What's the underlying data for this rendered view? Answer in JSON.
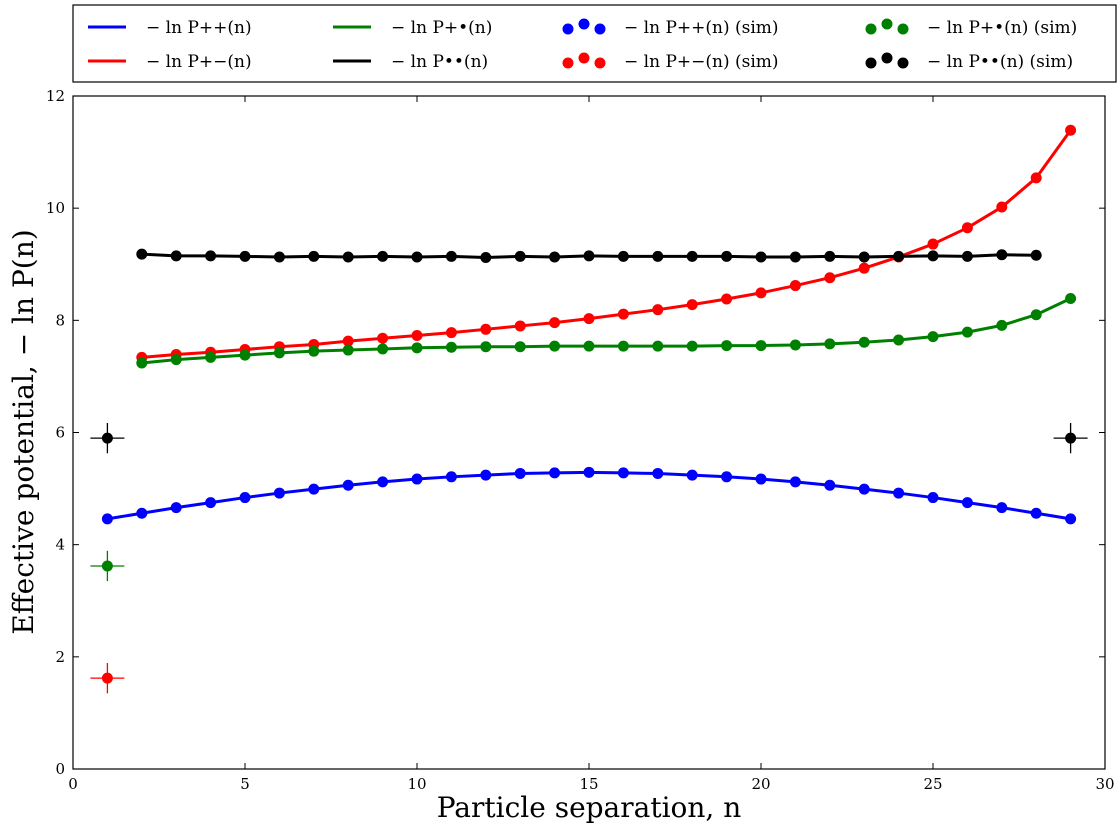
{
  "chart_data": {
    "type": "line",
    "xlabel": "Particle separation, n",
    "ylabel": "Effective potential, − ln P(n)",
    "xlim": [
      0,
      30
    ],
    "ylim": [
      0,
      12
    ],
    "xticks": [
      "0",
      "5",
      "10",
      "15",
      "20",
      "25",
      "30"
    ],
    "yticks": [
      "0",
      "2",
      "4",
      "6",
      "8",
      "10",
      "12"
    ],
    "grid": false,
    "legend_position": "top",
    "legend": [
      {
        "key": "pp_line",
        "label": "− ln P++(n)",
        "kind": "line",
        "color": "#0000ff"
      },
      {
        "key": "pd_line",
        "label": "− ln P+•(n)",
        "kind": "line",
        "color": "#008000"
      },
      {
        "key": "pp_sim",
        "label": "− ln P++(n) (sim)",
        "kind": "dots",
        "color": "#0000ff"
      },
      {
        "key": "pd_sim",
        "label": "− ln P+•(n) (sim)",
        "kind": "dots",
        "color": "#008000"
      },
      {
        "key": "pm_line",
        "label": "− ln P+−(n)",
        "kind": "line",
        "color": "#ff0000"
      },
      {
        "key": "dd_line",
        "label": "− ln P••(n)",
        "kind": "line",
        "color": "#000000"
      },
      {
        "key": "pm_sim",
        "label": "− ln P+−(n) (sim)",
        "kind": "dots",
        "color": "#ff0000"
      },
      {
        "key": "dd_sim",
        "label": "− ln P••(n) (sim)",
        "kind": "dots",
        "color": "#000000"
      }
    ],
    "series": [
      {
        "key": "pp",
        "color": "#0000ff",
        "x": [
          1,
          2,
          3,
          4,
          5,
          6,
          7,
          8,
          9,
          10,
          11,
          12,
          13,
          14,
          15,
          16,
          17,
          18,
          19,
          20,
          21,
          22,
          23,
          24,
          25,
          26,
          27,
          28,
          29
        ],
        "y": [
          4.46,
          4.56,
          4.66,
          4.75,
          4.84,
          4.92,
          4.99,
          5.06,
          5.12,
          5.17,
          5.21,
          5.24,
          5.27,
          5.28,
          5.29,
          5.28,
          5.27,
          5.24,
          5.21,
          5.17,
          5.12,
          5.06,
          4.99,
          4.92,
          4.84,
          4.75,
          4.66,
          4.56,
          4.46
        ]
      },
      {
        "key": "pm",
        "color": "#ff0000",
        "x": [
          2,
          3,
          4,
          5,
          6,
          7,
          8,
          9,
          10,
          11,
          12,
          13,
          14,
          15,
          16,
          17,
          18,
          19,
          20,
          21,
          22,
          23,
          24,
          25,
          26,
          27,
          28,
          29
        ],
        "y": [
          7.34,
          7.39,
          7.43,
          7.48,
          7.53,
          7.57,
          7.63,
          7.68,
          7.73,
          7.78,
          7.84,
          7.9,
          7.96,
          8.03,
          8.11,
          8.19,
          8.28,
          8.38,
          8.49,
          8.62,
          8.76,
          8.93,
          9.13,
          9.36,
          9.65,
          10.02,
          10.54,
          11.39
        ]
      },
      {
        "key": "pd",
        "color": "#008000",
        "x": [
          2,
          3,
          4,
          5,
          6,
          7,
          8,
          9,
          10,
          11,
          12,
          13,
          14,
          15,
          16,
          17,
          18,
          19,
          20,
          21,
          22,
          23,
          24,
          25,
          26,
          27,
          28,
          29
        ],
        "y": [
          7.24,
          7.3,
          7.34,
          7.38,
          7.42,
          7.45,
          7.47,
          7.49,
          7.51,
          7.52,
          7.53,
          7.53,
          7.54,
          7.54,
          7.54,
          7.54,
          7.54,
          7.55,
          7.55,
          7.56,
          7.58,
          7.61,
          7.65,
          7.71,
          7.79,
          7.91,
          8.1,
          8.39
        ]
      },
      {
        "key": "dd",
        "color": "#000000",
        "x": [
          2,
          3,
          4,
          5,
          6,
          7,
          8,
          9,
          10,
          11,
          12,
          13,
          14,
          15,
          16,
          17,
          18,
          19,
          20,
          21,
          22,
          23,
          24,
          25,
          26,
          27,
          28
        ],
        "y": [
          9.18,
          9.15,
          9.15,
          9.14,
          9.13,
          9.14,
          9.13,
          9.14,
          9.13,
          9.14,
          9.12,
          9.14,
          9.13,
          9.15,
          9.14,
          9.14,
          9.14,
          9.14,
          9.13,
          9.13,
          9.14,
          9.13,
          9.14,
          9.15,
          9.14,
          9.17,
          9.16
        ]
      }
    ],
    "errorbar_points": [
      {
        "series": "dd",
        "x": 1,
        "y": 5.9,
        "err": 0.27,
        "color": "#000000"
      },
      {
        "series": "dd",
        "x": 29,
        "y": 5.9,
        "err": 0.27,
        "color": "#000000"
      },
      {
        "series": "pd",
        "x": 1,
        "y": 3.62,
        "err": 0.27,
        "color": "#008000"
      },
      {
        "series": "pm",
        "x": 1,
        "y": 1.62,
        "err": 0.27,
        "color": "#ff0000"
      }
    ]
  }
}
